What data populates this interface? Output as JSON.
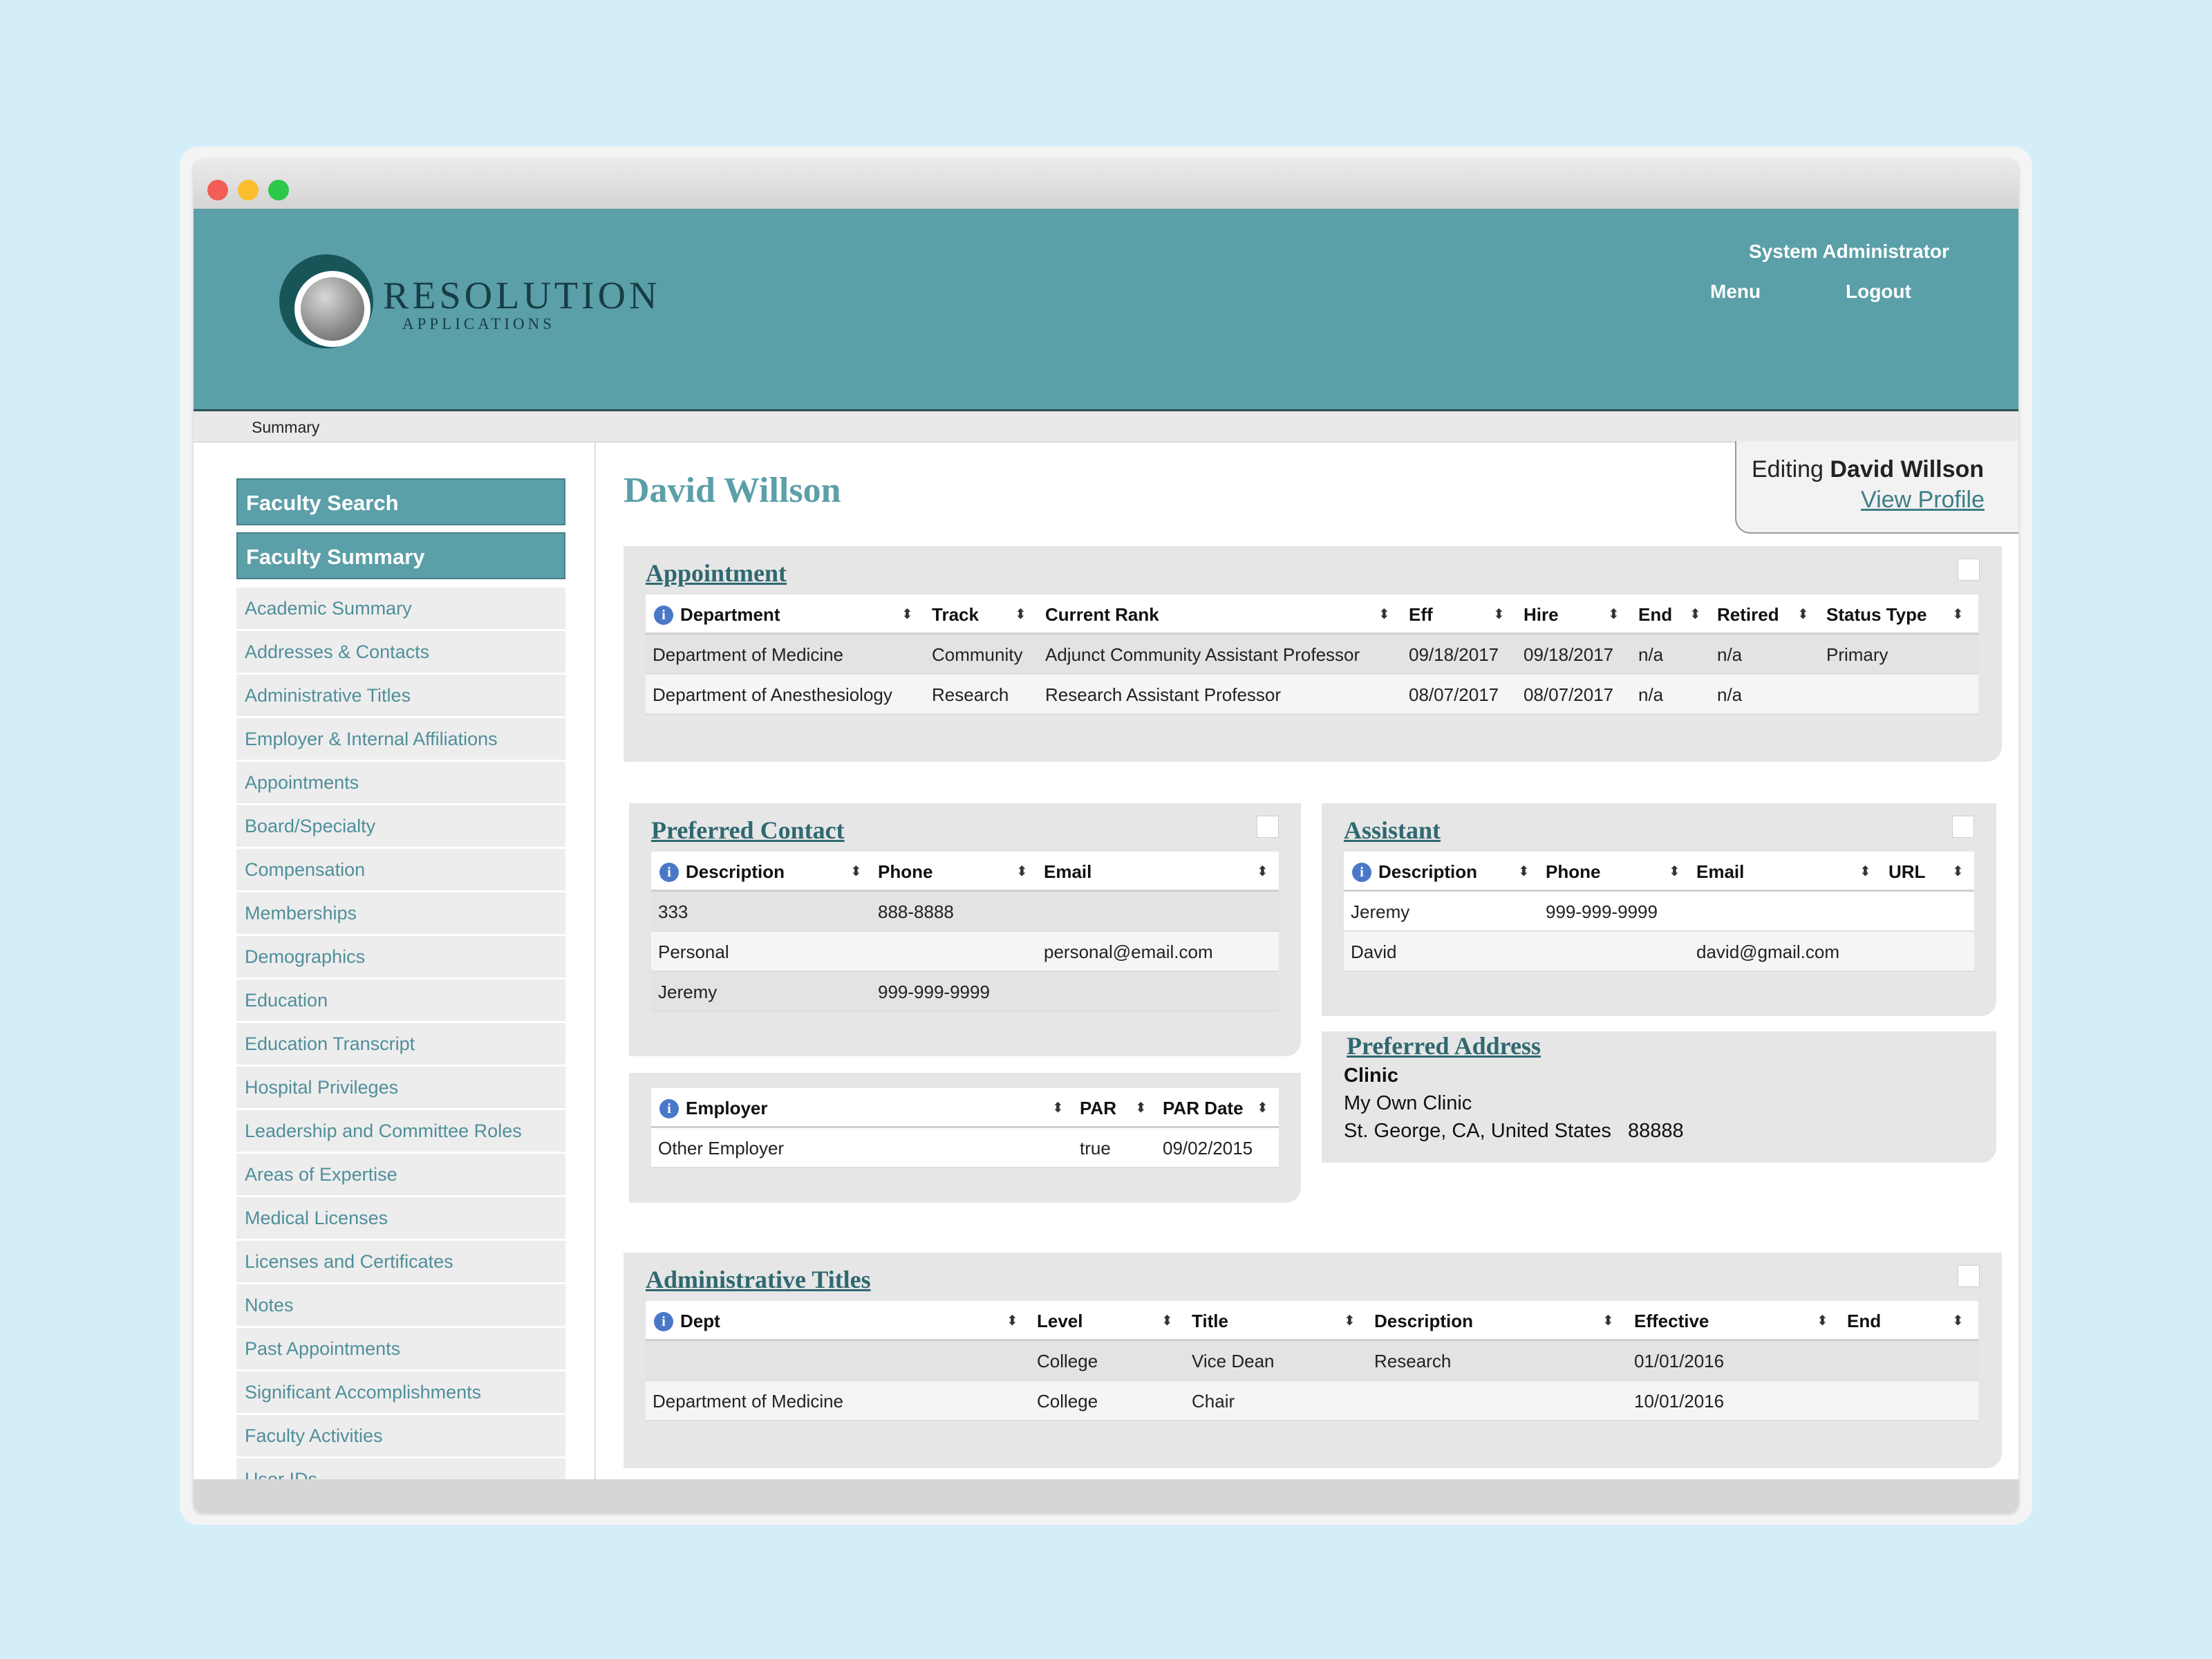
{
  "header": {
    "logo_word": "RESOLUTION",
    "logo_sub": "APPLICATIONS",
    "user_role": "System Administrator",
    "menu_label": "Menu",
    "logout_label": "Logout"
  },
  "breadcrumb": "Summary",
  "sidebar": {
    "buttons": [
      "Faculty Search",
      "Faculty Summary"
    ],
    "items": [
      "Academic Summary",
      "Addresses & Contacts",
      "Administrative Titles",
      "Employer & Internal Affiliations",
      "Appointments",
      "Board/Specialty",
      "Compensation",
      "Memberships",
      "Demographics",
      "Education",
      "Education Transcript",
      "Hospital Privileges",
      "Leadership and Committee Roles",
      "Areas of Expertise",
      "Medical Licenses",
      "Licenses and Certificates",
      "Notes",
      "Past Appointments",
      "Significant Accomplishments",
      "Faculty Activities",
      "User IDs"
    ]
  },
  "person_name": "David Willson",
  "edit_panel": {
    "prefix": "Editing",
    "name": "David Willson",
    "view_profile": "View Profile"
  },
  "appointment": {
    "title": "Appointment",
    "columns": [
      "Department",
      "Track",
      "Current Rank",
      "Eff",
      "Hire",
      "End",
      "Retired",
      "Status Type"
    ],
    "rows": [
      [
        "Department of Medicine",
        "Community",
        "Adjunct Community Assistant Professor",
        "09/18/2017",
        "09/18/2017",
        "n/a",
        "n/a",
        "Primary"
      ],
      [
        "Department of Anesthesiology",
        "Research",
        "Research Assistant Professor",
        "08/07/2017",
        "08/07/2017",
        "n/a",
        "n/a",
        ""
      ]
    ]
  },
  "preferred_contact": {
    "title": "Preferred Contact",
    "columns": [
      "Description",
      "Phone",
      "Email"
    ],
    "rows": [
      [
        "333",
        "888-8888",
        ""
      ],
      [
        "Personal",
        "",
        "personal@email.com"
      ],
      [
        "Jeremy",
        "999-999-9999",
        ""
      ]
    ]
  },
  "employer": {
    "columns": [
      "Employer",
      "PAR",
      "PAR Date"
    ],
    "rows": [
      [
        "Other Employer",
        "true",
        "09/02/2015"
      ]
    ]
  },
  "assistant": {
    "title": "Assistant",
    "columns": [
      "Description",
      "Phone",
      "Email",
      "URL"
    ],
    "rows": [
      [
        "Jeremy",
        "999-999-9999",
        "",
        ""
      ],
      [
        "David",
        "",
        "david@gmail.com",
        ""
      ]
    ]
  },
  "preferred_address": {
    "title": "Preferred Address",
    "name": "Clinic",
    "line1": "My Own Clinic",
    "line2": "St. George, CA, United States",
    "zip": "88888"
  },
  "admin_titles": {
    "title": "Administrative Titles",
    "columns": [
      "Dept",
      "Level",
      "Title",
      "Description",
      "Effective",
      "End"
    ],
    "rows": [
      [
        "",
        "College",
        "Vice Dean",
        "Research",
        "01/01/2016",
        ""
      ],
      [
        "Department of Medicine",
        "College",
        "Chair",
        "",
        "10/01/2016",
        ""
      ]
    ]
  },
  "colors": {
    "brand_teal": "#5b9fa8",
    "logo_dark": "#175559",
    "page_bg": "#d3eef9",
    "link_teal": "#4f8f9b"
  }
}
